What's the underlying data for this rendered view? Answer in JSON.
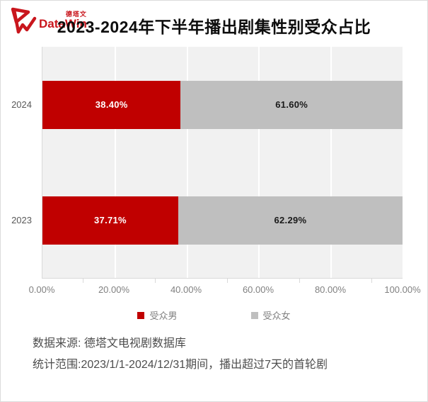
{
  "header": {
    "logo": {
      "brand": "DataWin",
      "brand_cn": "德塔文",
      "color": "#c9161d"
    },
    "title": "2023-2024年下半年播出剧集性别受众占比"
  },
  "chart_data": {
    "type": "bar",
    "subtype": "horizontal_stacked",
    "title": "2023-2024年下半年播出剧集性别受众占比",
    "categories": [
      "2024",
      "2023"
    ],
    "series": [
      {
        "name": "受众男",
        "color": "#c00000",
        "label_color": "#ffffff",
        "values": [
          38.4,
          37.71
        ],
        "labels": [
          "38.40%",
          "37.71%"
        ]
      },
      {
        "name": "受众女",
        "color": "#bfbfbf",
        "label_color": "#1a1a1a",
        "values": [
          61.6,
          62.29
        ],
        "labels": [
          "61.60%",
          "62.29%"
        ]
      }
    ],
    "xlim": [
      0,
      100
    ],
    "x_ticks": [
      "0.00%",
      "20.00%",
      "40.00%",
      "60.00%",
      "80.00%",
      "100.00%"
    ],
    "grid": "vertical-white-gridlines",
    "plot_background": "#f1f1f1",
    "legend_position": "bottom"
  },
  "legend": {
    "items": [
      {
        "label": "受众男",
        "color": "#c00000"
      },
      {
        "label": "受众女",
        "color": "#bfbfbf"
      }
    ]
  },
  "footer": {
    "source": "数据来源: 德塔文电视剧数据库",
    "scope": "统计范围:2023/1/1-2024/12/31期间，播出超过7天的首轮剧"
  }
}
